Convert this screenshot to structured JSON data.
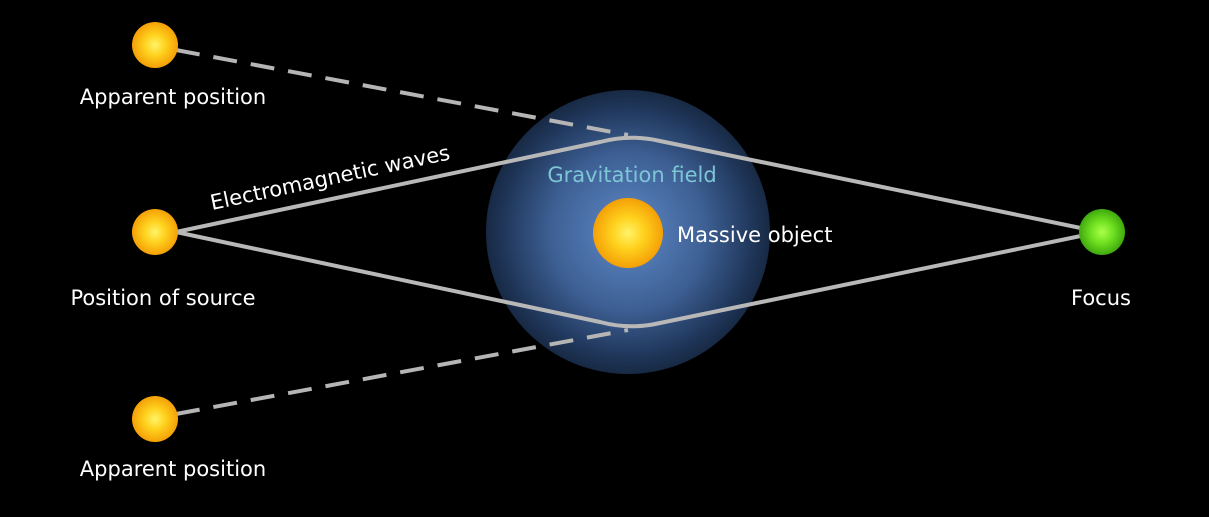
{
  "labels": {
    "apparent_position_top": "Apparent position",
    "apparent_position_bottom": "Apparent position",
    "position_of_source": "Position of source",
    "electromagnetic_waves": "Electromagnetic waves",
    "gravitation_field": "Gravitation field",
    "massive_object": "Massive object",
    "focus": "Focus"
  },
  "colors": {
    "background": "#000000",
    "star": "#ffc21a",
    "focus": "#57d61c",
    "ray": "#b8b8b8",
    "field_core": "#5a82c2",
    "field_edge": "#16263f",
    "field_label": "#7dc6d6",
    "label": "#ffffff"
  }
}
